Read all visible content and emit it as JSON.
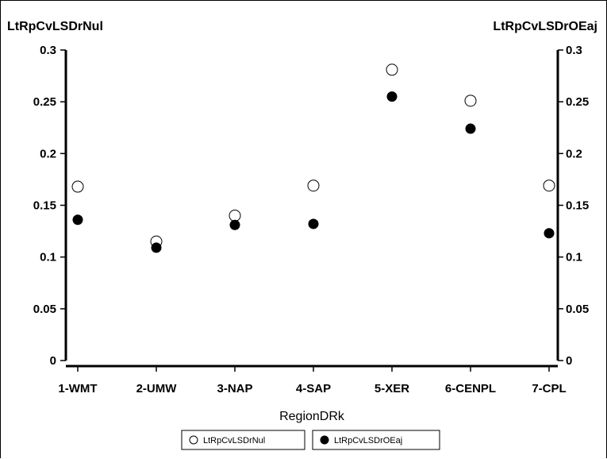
{
  "chart_data": {
    "type": "scatter",
    "left_axis_label": "LtRpCvLSDrNul",
    "right_axis_label": "LtRpCvLSDrOEaj",
    "xlabel": "RegionDRk",
    "categories": [
      "1-WMT",
      "2-UMW",
      "3-NAP",
      "4-SAP",
      "5-XER",
      "6-CENPL",
      "7-CPL"
    ],
    "ylim": [
      0,
      0.3
    ],
    "yticks": [
      "0",
      "0.05",
      "0.1",
      "0.15",
      "0.2",
      "0.25",
      "0.3"
    ],
    "ytick_values": [
      0,
      0.05,
      0.1,
      0.15,
      0.2,
      0.25,
      0.3
    ],
    "series": [
      {
        "name": "LtRpCvLSDrNul",
        "marker": "open-circle",
        "values": [
          0.168,
          0.115,
          0.14,
          0.169,
          0.281,
          0.251,
          0.169
        ]
      },
      {
        "name": "LtRpCvLSDrOEaj",
        "marker": "filled-circle",
        "values": [
          0.136,
          0.109,
          0.131,
          0.132,
          0.255,
          0.224,
          0.123
        ]
      }
    ],
    "grid": false,
    "legend_position": "bottom-center"
  }
}
